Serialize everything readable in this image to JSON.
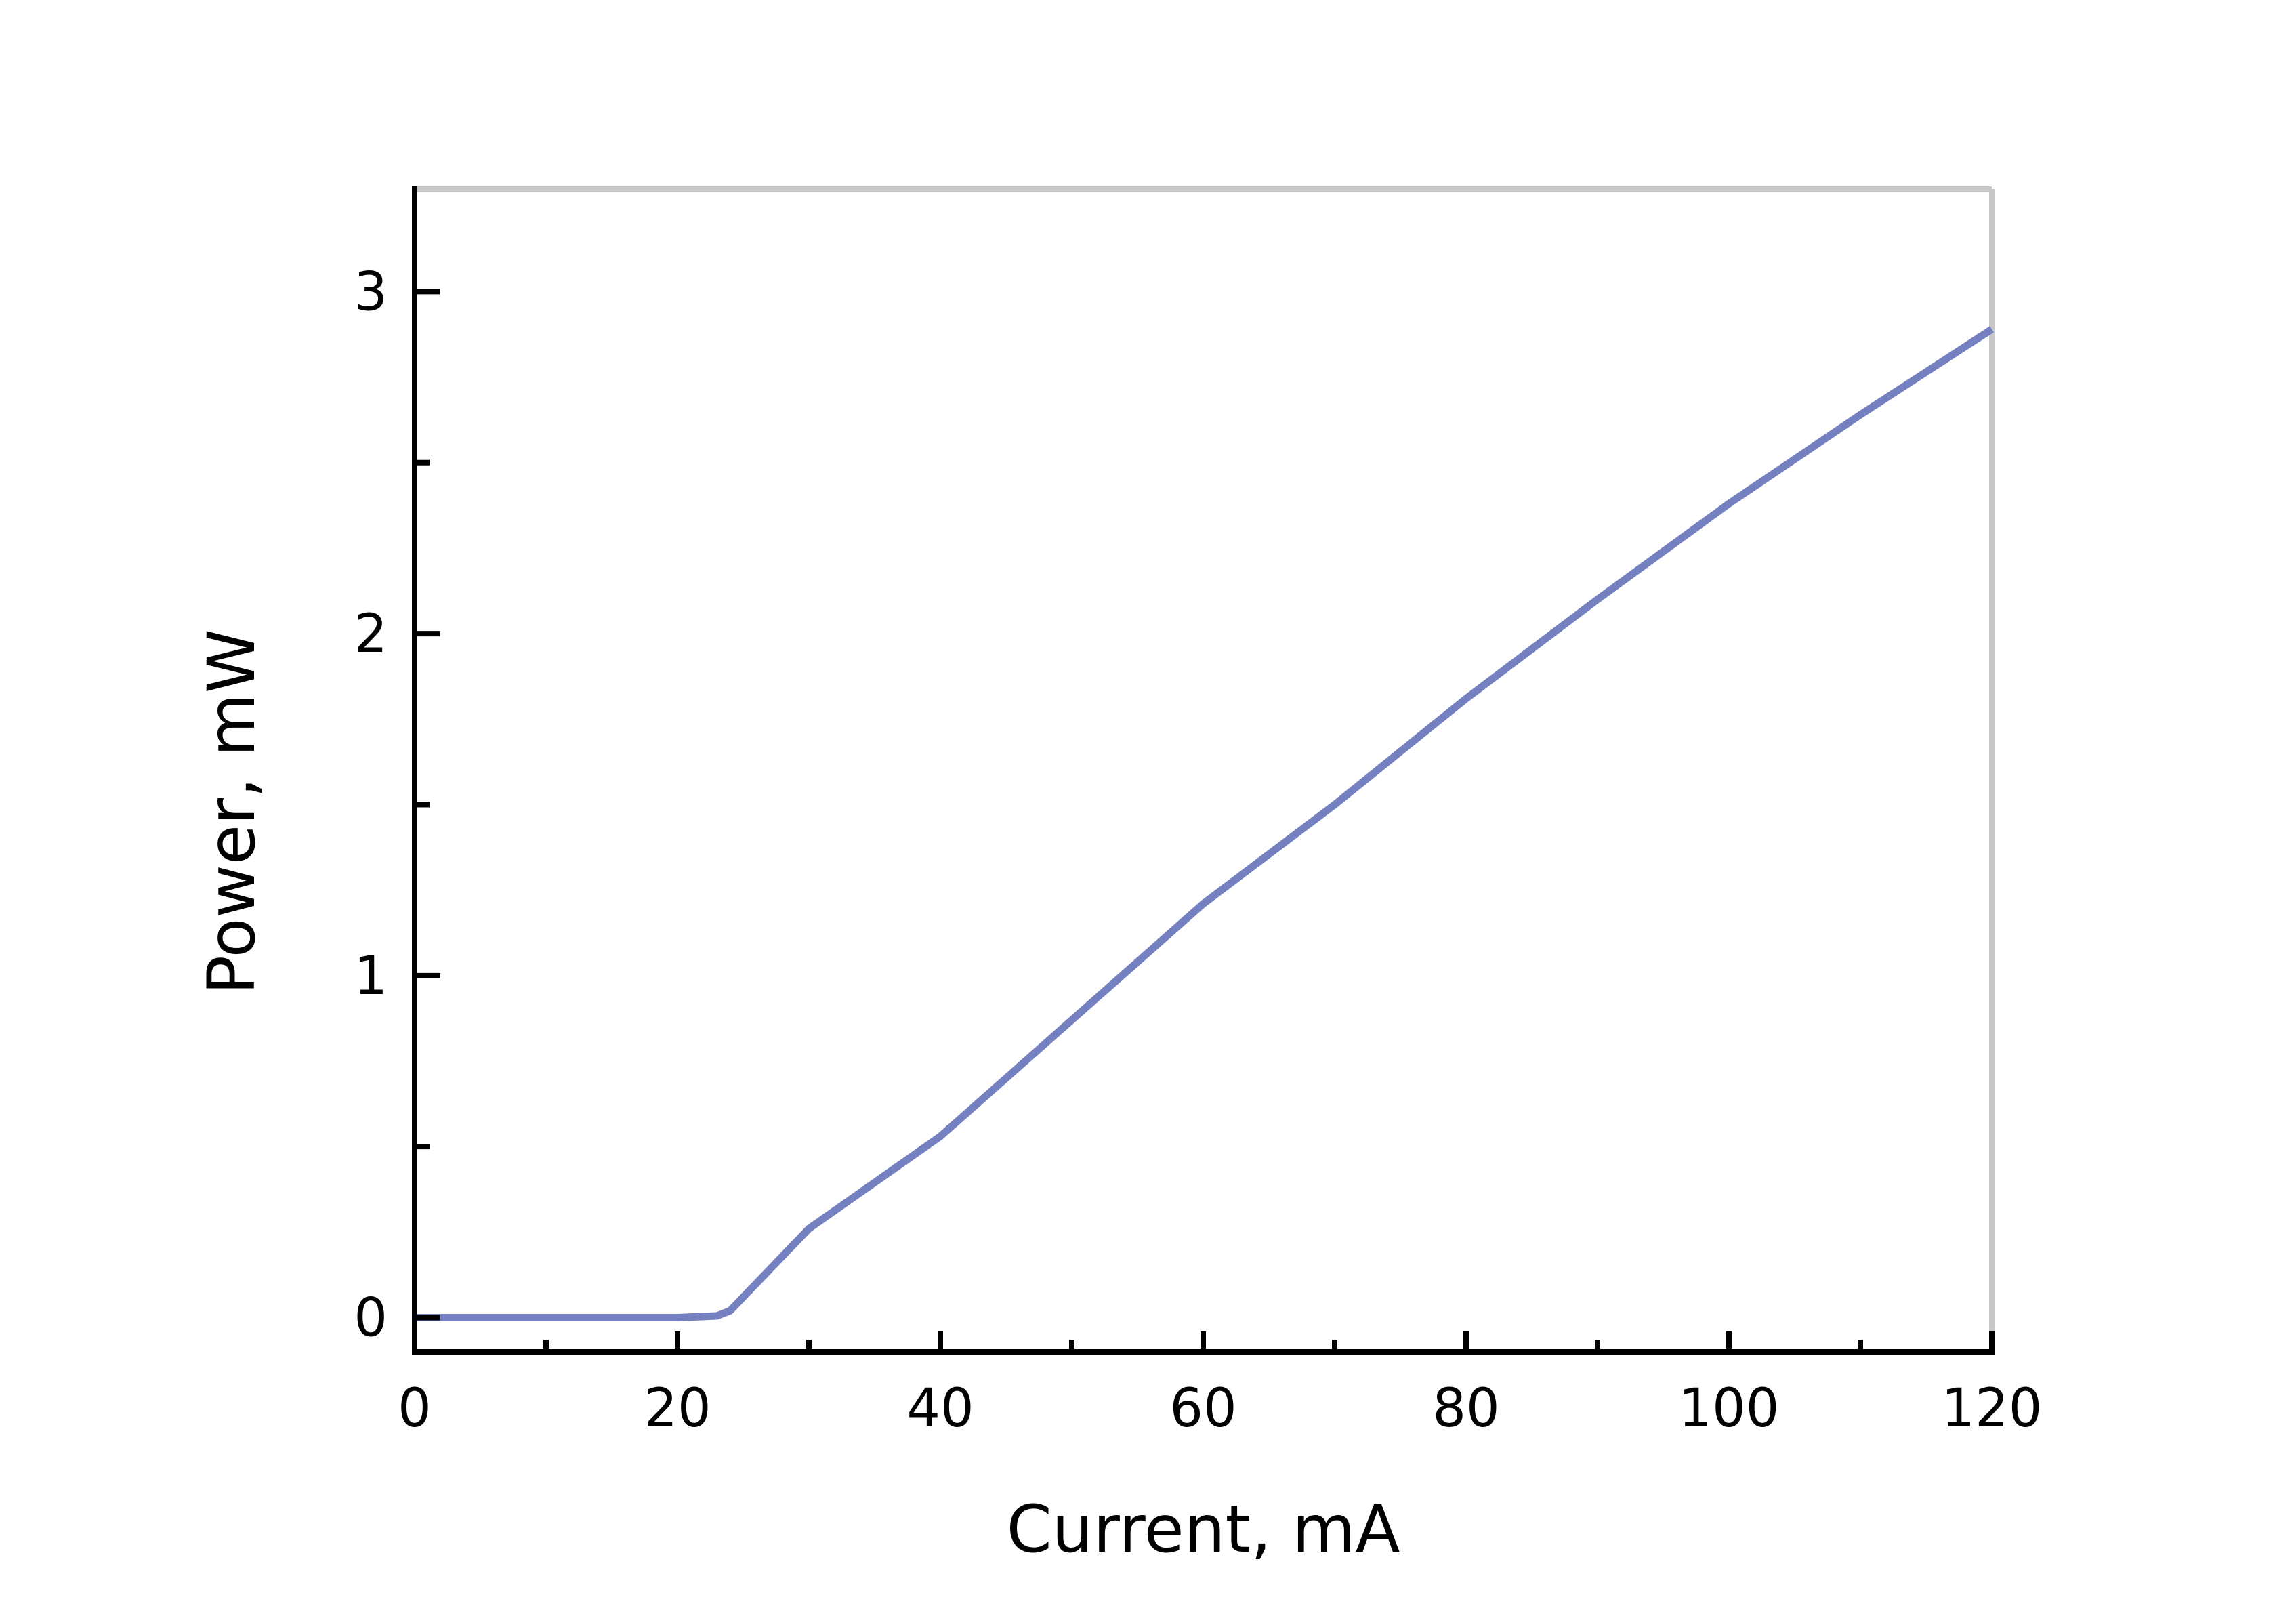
{
  "chart_data": {
    "type": "line",
    "x_label": "Current, mA",
    "y_label": "Power, mW",
    "x": [
      0,
      10,
      20,
      23,
      24,
      30,
      40,
      50,
      60,
      70,
      80,
      90,
      100,
      110,
      120
    ],
    "series": [
      {
        "name": "Power",
        "color": "#7480c0",
        "values": [
          0,
          0,
          0,
          0.005,
          0.02,
          0.26,
          0.53,
          0.87,
          1.21,
          1.5,
          1.81,
          2.1,
          2.38,
          2.64,
          2.89
        ]
      }
    ],
    "xlim": [
      0,
      120
    ],
    "xticks": [
      0,
      20,
      40,
      60,
      80,
      100,
      120
    ],
    "xminorticks": [
      10,
      30,
      50,
      70,
      90,
      110
    ],
    "ylim": [
      -0.1,
      3.3
    ],
    "yticks": [
      0,
      1,
      2,
      3
    ],
    "yminorticks": [
      0.5,
      1.5,
      2.5
    ],
    "grid": false
  }
}
